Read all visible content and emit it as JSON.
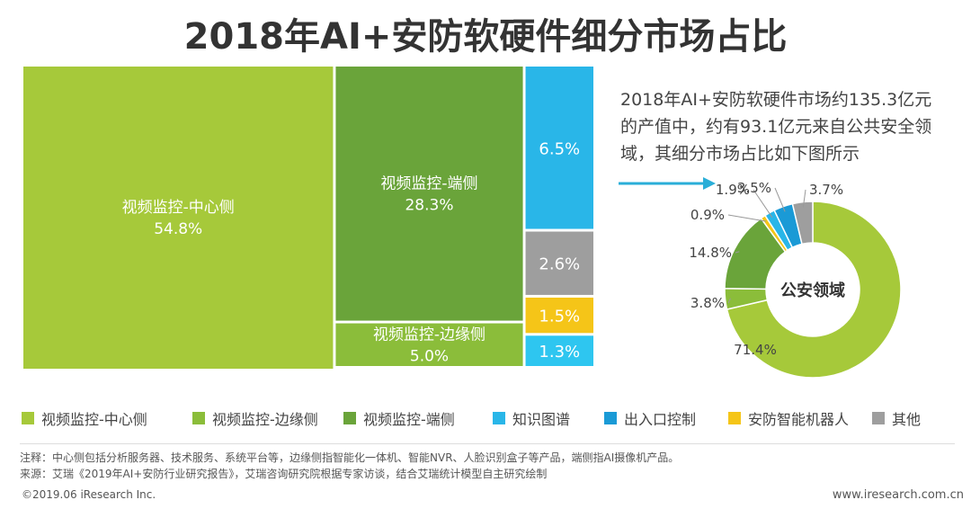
{
  "title": "2018年AI+安防软硬件细分市场占比",
  "note": {
    "line1": "2018年AI+安防软硬件市场约135.3亿元",
    "line2": "的产值中，约有93.1亿元来自公共安全领",
    "line3": "域，其细分市场占比如下图所示"
  },
  "chart_data": [
    {
      "type": "treemap",
      "title": "2018年AI+安防软硬件细分市场占比",
      "items": [
        {
          "name": "视频监控-中心侧",
          "value": 54.8,
          "label": "54.8%",
          "color": "#a6c93a"
        },
        {
          "name": "视频监控-端侧",
          "value": 28.3,
          "label": "28.3%",
          "color": "#6aa43a"
        },
        {
          "name": "视频监控-边缘侧",
          "value": 5.0,
          "label": "5.0%",
          "color": "#8bbd3a"
        },
        {
          "name": "知识图谱",
          "value": 6.5,
          "label": "6.5%",
          "color": "#29b6e8"
        },
        {
          "name": "其他",
          "value": 2.6,
          "label": "2.6%",
          "color": "#9e9e9e"
        },
        {
          "name": "安防智能机器人",
          "value": 1.5,
          "label": "1.5%",
          "color": "#f5c518"
        },
        {
          "name": "出入口控制",
          "value": 1.3,
          "label": "1.3%",
          "color": "#2ec6f0"
        }
      ]
    },
    {
      "type": "pie",
      "title": "公安领域",
      "center_label": "公安领域",
      "slices": [
        {
          "name": "视频监控-中心侧",
          "value": 71.4,
          "label": "71.4%",
          "color": "#a6c93a"
        },
        {
          "name": "视频监控-边缘侧",
          "value": 3.8,
          "label": "3.8%",
          "color": "#8bbd3a"
        },
        {
          "name": "视频监控-端侧",
          "value": 14.8,
          "label": "14.8%",
          "color": "#6aa43a"
        },
        {
          "name": "安防智能机器人",
          "value": 0.9,
          "label": "0.9%",
          "color": "#f5c518"
        },
        {
          "name": "知识图谱",
          "value": 1.9,
          "label": "1.9%",
          "color": "#29b6e8"
        },
        {
          "name": "出入口控制",
          "value": 3.5,
          "label": "3.5%",
          "color": "#1a9ad6"
        },
        {
          "name": "其他",
          "value": 3.7,
          "label": "3.7%",
          "color": "#9e9e9e"
        }
      ]
    }
  ],
  "legend": [
    {
      "label": "视频监控-中心侧",
      "color": "#a6c93a"
    },
    {
      "label": "视频监控-边缘侧",
      "color": "#8bbd3a"
    },
    {
      "label": "视频监控-端侧",
      "color": "#6aa43a"
    },
    {
      "label": "知识图谱",
      "color": "#29b6e8"
    },
    {
      "label": "出入口控制",
      "color": "#1a9ad6"
    },
    {
      "label": "安防智能机器人",
      "color": "#f5c518"
    },
    {
      "label": "其他",
      "color": "#9e9e9e"
    }
  ],
  "footer": {
    "note": "注释：中心侧包括分析服务器、技术服务、系统平台等，边缘侧指智能化一体机、智能NVR、人脸识别盒子等产品，端侧指AI摄像机产品。",
    "source": "来源：艾瑞《2019年AI+安防行业研究报告》，艾瑞咨询研究院根据专家访谈，结合艾瑞统计模型自主研究绘制",
    "copyright": "©2019.06 iResearch Inc.",
    "site": "www.iresearch.com.cn"
  }
}
